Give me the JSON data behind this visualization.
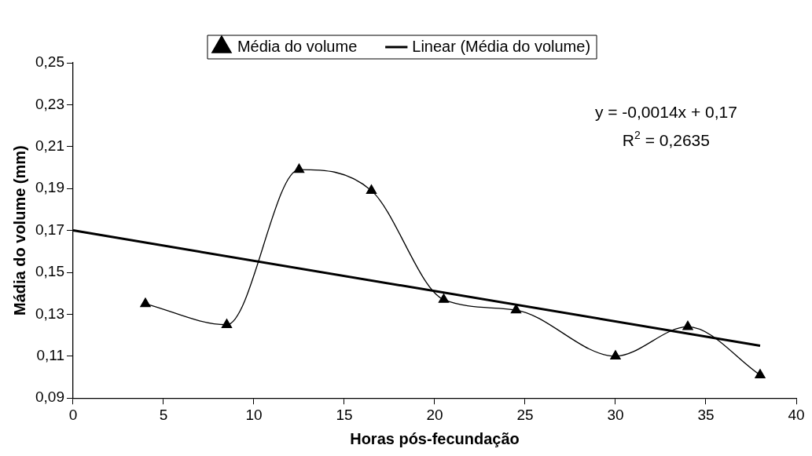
{
  "chart_data": {
    "type": "line",
    "xlabel": "Horas pós-fecundação",
    "ylabel": "Mádia do volume (mm)",
    "series": [
      {
        "name": "Média do volume",
        "color": "#000000",
        "x": [
          4,
          8.5,
          12.5,
          16.5,
          20.5,
          24.5,
          30,
          34,
          38
        ],
        "values": [
          0.135,
          0.125,
          0.199,
          0.189,
          0.137,
          0.132,
          0.11,
          0.124,
          0.101
        ],
        "marker": "triangle"
      },
      {
        "name": "Linear (Média do volume)",
        "type": "line",
        "color": "#000000",
        "x": [
          0,
          38
        ],
        "values": [
          0.17,
          0.115
        ],
        "marker": "none"
      }
    ],
    "xlim": [
      0,
      40
    ],
    "xticks": [
      0,
      5,
      10,
      15,
      20,
      25,
      30,
      35,
      40
    ],
    "ylim": [
      0.09,
      0.25
    ],
    "yticks": [
      {
        "value": 0.09,
        "label": "0,09"
      },
      {
        "value": 0.11,
        "label": "0,11"
      },
      {
        "value": 0.13,
        "label": "0,13"
      },
      {
        "value": 0.15,
        "label": "0,15"
      },
      {
        "value": 0.17,
        "label": "0,17"
      },
      {
        "value": 0.19,
        "label": "0,19"
      },
      {
        "value": 0.21,
        "label": "0,21"
      },
      {
        "value": 0.23,
        "label": "0,23"
      },
      {
        "value": 0.25,
        "label": "0,25"
      }
    ],
    "annotations": [
      "y = -0,0014x + 0,17",
      "R$^{2}$ = 0,2635"
    ],
    "legend": "top",
    "grid": false
  }
}
